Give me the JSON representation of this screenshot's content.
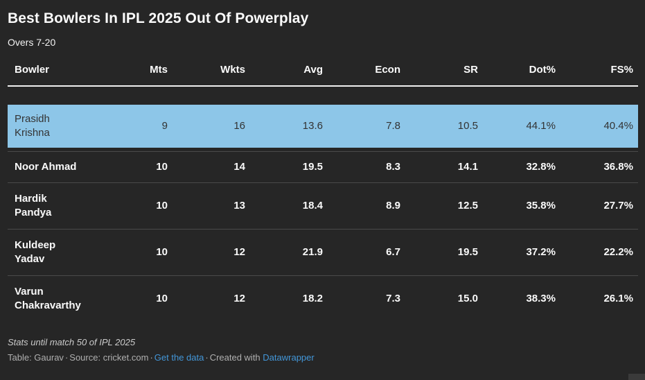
{
  "header": {
    "title": "Best Bowlers In IPL 2025 Out Of Powerplay",
    "subtitle": "Overs 7-20"
  },
  "chart_data": {
    "type": "table",
    "title": "Best Bowlers In IPL 2025 Out Of Powerplay",
    "subtitle": "Overs 7-20",
    "columns": [
      "Bowler",
      "Mts",
      "Wkts",
      "Avg",
      "Econ",
      "SR",
      "Dot%",
      "FS%"
    ],
    "rows": [
      {
        "bowler": "Prasidh Krishna",
        "mts": "9",
        "wkts": "16",
        "avg": "13.6",
        "econ": "7.8",
        "sr": "10.5",
        "dot_pct": "44.1%",
        "fs_pct": "40.4%",
        "highlighted": true
      },
      {
        "bowler": "Noor Ahmad",
        "mts": "10",
        "wkts": "14",
        "avg": "19.5",
        "econ": "8.3",
        "sr": "14.1",
        "dot_pct": "32.8%",
        "fs_pct": "36.8%",
        "highlighted": false
      },
      {
        "bowler": "Hardik Pandya",
        "mts": "10",
        "wkts": "13",
        "avg": "18.4",
        "econ": "8.9",
        "sr": "12.5",
        "dot_pct": "35.8%",
        "fs_pct": "27.7%",
        "highlighted": false
      },
      {
        "bowler": "Kuldeep Yadav",
        "mts": "10",
        "wkts": "12",
        "avg": "21.9",
        "econ": "6.7",
        "sr": "19.5",
        "dot_pct": "37.2%",
        "fs_pct": "22.2%",
        "highlighted": false
      },
      {
        "bowler": "Varun Chakravarthy",
        "mts": "10",
        "wkts": "12",
        "avg": "18.2",
        "econ": "7.3",
        "sr": "15.0",
        "dot_pct": "38.3%",
        "fs_pct": "26.1%",
        "highlighted": false
      }
    ],
    "legend_position": "none",
    "grid": "row-dividers"
  },
  "footer": {
    "note": "Stats until match 50 of IPL 2025",
    "byline": "Table: Gaurav",
    "source_text": "Source: cricket.com",
    "separator": "·",
    "get_data_label": "Get the data",
    "created_with_label": "Created with",
    "tool_label": "Datawrapper"
  },
  "controls": {
    "resize_icon": "↔"
  },
  "colors": {
    "background": "#262626",
    "highlight_row": "#8dc6e8",
    "highlight_text": "#333333",
    "body_text": "#fafafa",
    "link": "#4397d9",
    "row_divider": "#4a4a4a",
    "header_underline": "#f0f0f0"
  }
}
